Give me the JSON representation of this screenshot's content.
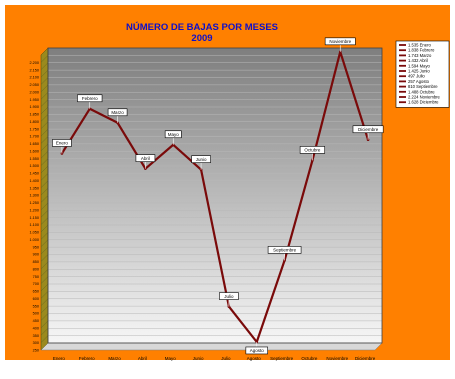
{
  "chart_data": {
    "type": "line",
    "title": "NÚMERO DE BAJAS POR MESES",
    "subtitle": "2009",
    "categories": [
      "Enero",
      "Febrero",
      "Marzo",
      "Abril",
      "Mayo",
      "Junio",
      "Julio",
      "Agosto",
      "Septiembre",
      "Octubre",
      "Noviembre",
      "Diciembre"
    ],
    "series": [
      {
        "values": [
          1535,
          1838,
          1743,
          1432,
          1594,
          1425,
          497,
          257,
          810,
          1488,
          2224,
          1628
        ],
        "color": "#7a0a0a"
      }
    ],
    "legend_labels": [
      "1.535 Enero",
      "1.838 Febrero",
      "1.743 Marzo",
      "1.432 Abril",
      "1.594 Mayo",
      "1.425 Junio",
      "497 Julio",
      "257 Agosto",
      "810 Septiembre",
      "1.488 Octubre",
      "2.224 Noviembre",
      "1.628 Diciembre"
    ],
    "y_ticks": [
      "250",
      "300",
      "350",
      "400",
      "450",
      "500",
      "550",
      "600",
      "650",
      "700",
      "750",
      "800",
      "850",
      "900",
      "950",
      "1.000",
      "1.050",
      "1.100",
      "1.150",
      "1.200",
      "1.250",
      "1.300",
      "1.350",
      "1.400",
      "1.450",
      "1.500",
      "1.550",
      "1.600",
      "1.650",
      "1.700",
      "1.750",
      "1.800",
      "1.850",
      "1.900",
      "1.950",
      "2.000",
      "2.050",
      "2.100",
      "2.150",
      "2.200"
    ],
    "ylim": [
      250,
      2250
    ],
    "grid": true,
    "legend_position": "right",
    "colors": {
      "frame_background": "#ff8000",
      "title": "#1010c8",
      "plot_top": "#7e7e7e",
      "plot_bottom": "#f6f6f6",
      "left_wall": "#9a8a1e",
      "line": "#7a0a0a"
    }
  }
}
